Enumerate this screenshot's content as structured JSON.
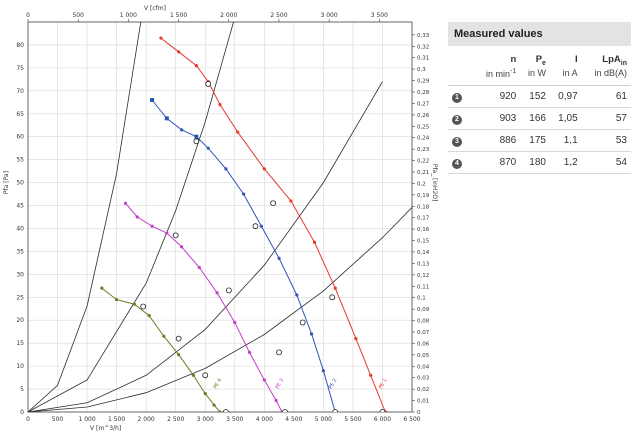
{
  "chart_data": {
    "type": "line",
    "title": "",
    "subtitle": "",
    "xlabel": "V [m^3/h]",
    "xlabel_top": "V [cfm]",
    "ylabel": "Pfa [Pa]",
    "ylabel_right": "Pfa_ [inH2O]",
    "xlim": [
      0,
      6500
    ],
    "ylim": [
      0,
      85
    ],
    "x_ticks": [
      "0",
      "500",
      "1 000",
      "1 500",
      "2 000",
      "2 500",
      "3 000",
      "3 500",
      "4 000",
      "4 500",
      "5 000",
      "5 500",
      "6 000",
      "6 500"
    ],
    "y_ticks": [
      "0",
      "5",
      "10",
      "15",
      "20",
      "25",
      "30",
      "35",
      "40",
      "45",
      "50",
      "55",
      "60",
      "65",
      "70",
      "75",
      "80"
    ],
    "top_ticks": [
      "0",
      "500",
      "1 000",
      "1 500",
      "2 000",
      "2 500",
      "3 000",
      "3 500"
    ],
    "right_ticks": [
      "0",
      "0,01",
      "0,02",
      "0,03",
      "0,04",
      "0,05",
      "0,06",
      "0,07",
      "0,08",
      "0,09",
      "0,1",
      "0,11",
      "0,12",
      "0,13",
      "0,14",
      "0,15",
      "0,16",
      "0,17",
      "0,18",
      "0,19",
      "0,2",
      "0,21",
      "0,22",
      "0,23",
      "0,24",
      "0,25",
      "0,26",
      "0,27",
      "0,28",
      "0,29",
      "0,3",
      "0,31",
      "0,32",
      "0,33"
    ],
    "grid": true,
    "series": [
      {
        "name": "",
        "color": "#e53a2e",
        "label": "s1",
        "x": [
          2250,
          2550,
          2850,
          3050,
          3250,
          3550,
          4000,
          4450,
          4850,
          5200,
          5550,
          5800,
          6050
        ],
        "y": [
          81.5,
          78.5,
          75.5,
          72,
          67,
          61,
          53,
          46,
          37,
          27,
          16,
          8,
          0
        ]
      },
      {
        "name": "",
        "color": "#2f55b4",
        "label": "s2",
        "x": [
          2100,
          2350,
          2600,
          2850,
          3050,
          3350,
          3650,
          3950,
          4250,
          4550,
          4800,
          5000,
          5200
        ],
        "y": [
          68,
          64,
          61.5,
          60,
          57.5,
          53,
          47.5,
          40.5,
          33.5,
          25.5,
          17,
          9,
          0
        ]
      },
      {
        "name": "",
        "color": "#c33fc8",
        "label": "s3",
        "x": [
          1650,
          1850,
          2100,
          2350,
          2600,
          2900,
          3200,
          3500,
          3750,
          4000,
          4200,
          4300
        ],
        "y": [
          45.5,
          42.5,
          40.5,
          39,
          36,
          31.5,
          26,
          19.5,
          13,
          7,
          2.5,
          0
        ]
      },
      {
        "name": "",
        "color": "#6e7d22",
        "label": "s4",
        "x": [
          1250,
          1500,
          1800,
          2050,
          2300,
          2550,
          2800,
          3000,
          3150,
          3250
        ],
        "y": [
          27,
          24.5,
          23.5,
          21,
          16.5,
          12.5,
          8,
          4,
          1.5,
          0
        ]
      }
    ],
    "system_curves": [
      {
        "x": [
          0,
          500,
          1000,
          1500,
          2000,
          2500,
          3000,
          3500
        ],
        "y": [
          0,
          5.8,
          23.1,
          52.0,
          92.4,
          144.4,
          208.0,
          283.1
        ]
      },
      {
        "x": [
          0,
          1000,
          2000,
          2500,
          3000,
          3500,
          4000
        ],
        "y": [
          0,
          7.0,
          28.1,
          43.9,
          63.2,
          86.0,
          112.4
        ]
      },
      {
        "x": [
          0,
          1000,
          2000,
          3000,
          4000,
          5000,
          6000
        ],
        "y": [
          0,
          2.0,
          8.0,
          18.0,
          32.0,
          50.0,
          72.0
        ]
      },
      {
        "x": [
          0,
          1000,
          2000,
          3000,
          4000,
          5000,
          6000,
          6500
        ],
        "y": [
          0,
          1.1,
          4.2,
          9.5,
          16.9,
          26.4,
          38.0,
          44.6
        ]
      }
    ],
    "operating_points": [
      [
        3050,
        71.5
      ],
      [
        2850,
        59
      ],
      [
        2500,
        38.5
      ],
      [
        1950,
        23
      ],
      [
        4150,
        45.5
      ],
      [
        3850,
        40.5
      ],
      [
        3400,
        26.5
      ],
      [
        2550,
        16
      ],
      [
        5150,
        25
      ],
      [
        4650,
        19.5
      ],
      [
        4250,
        13
      ],
      [
        3000,
        8
      ],
      [
        6000,
        0
      ],
      [
        5200,
        0
      ],
      [
        4350,
        0
      ],
      [
        3350,
        0
      ]
    ],
    "curve_labels": [
      "PE 1",
      "PE 2",
      "PE 3",
      "PE 4"
    ]
  },
  "table": {
    "title": "Measured values",
    "headers": [
      {
        "sym": "n",
        "sub": "",
        "unit_main": "in min",
        "unit_sup": "-1"
      },
      {
        "sym": "P",
        "sub": "e",
        "unit_main": "in W",
        "unit_sup": ""
      },
      {
        "sym": "I",
        "sub": "",
        "unit_main": "in A",
        "unit_sup": ""
      },
      {
        "sym": "LpA",
        "sub": "in",
        "unit_main": "in dB(A)",
        "unit_sup": ""
      }
    ],
    "rows": [
      {
        "num": "1",
        "n": "920",
        "pe": "152",
        "i": "0,97",
        "lpa": "61"
      },
      {
        "num": "2",
        "n": "903",
        "pe": "166",
        "i": "1,05",
        "lpa": "57"
      },
      {
        "num": "3",
        "n": "886",
        "pe": "175",
        "i": "1,1",
        "lpa": "53"
      },
      {
        "num": "4",
        "n": "870",
        "pe": "180",
        "i": "1,2",
        "lpa": "54"
      }
    ]
  }
}
